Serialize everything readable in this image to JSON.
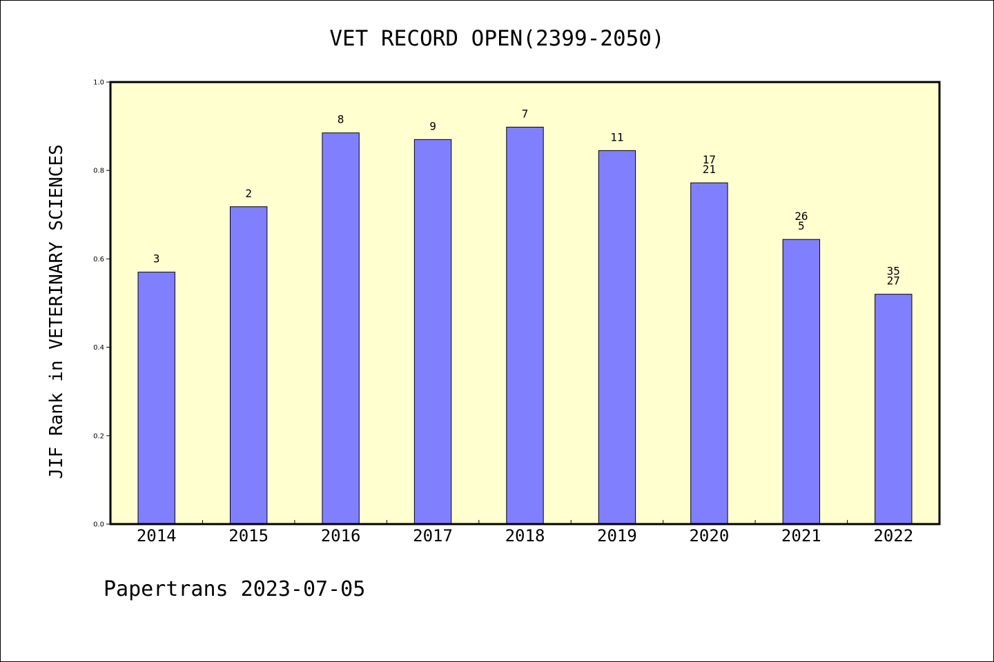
{
  "chart_data": {
    "type": "bar",
    "title": "VET RECORD OPEN(2399-2050)",
    "xlabel": "",
    "ylabel": "JIF Rank in VETERINARY SCIENCES",
    "ylim": [
      0,
      1.0
    ],
    "yticks": [
      "0.0",
      "0.2",
      "0.4",
      "0.6",
      "0.8",
      "1.0"
    ],
    "ytick_values": [
      0,
      0.2,
      0.4,
      0.6,
      0.8,
      1.0
    ],
    "grid": false,
    "categories": [
      "2014",
      "2015",
      "2016",
      "2017",
      "2018",
      "2019",
      "2020",
      "2021",
      "2022"
    ],
    "values": [
      0.57,
      0.718,
      0.885,
      0.87,
      0.898,
      0.845,
      0.772,
      0.644,
      0.52
    ],
    "bar_labels": [
      [
        "3"
      ],
      [
        "2"
      ],
      [
        "8"
      ],
      [
        "9"
      ],
      [
        "7"
      ],
      [
        "11"
      ],
      [
        "17",
        "21"
      ],
      [
        "26",
        "5"
      ],
      [
        "35",
        "27"
      ]
    ],
    "bar_color": "#8080ff",
    "plot_background": "#ffffd0"
  },
  "footer": {
    "text": "Papertrans 2023-07-05"
  }
}
